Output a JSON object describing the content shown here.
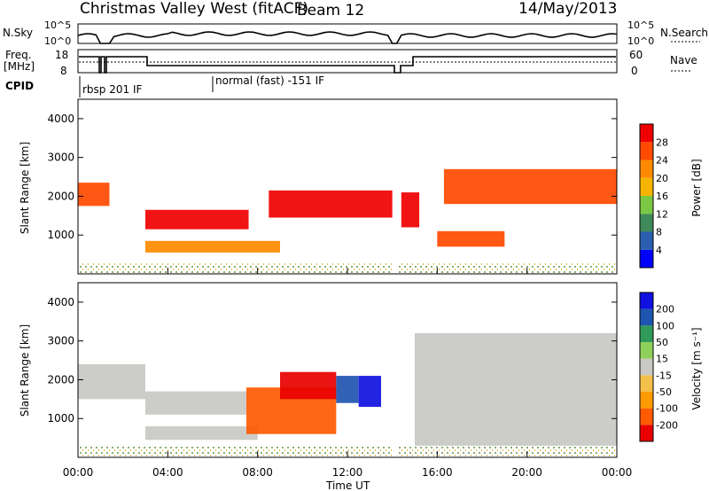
{
  "header": {
    "title": "Christmas Valley West (fitACF)",
    "beam": "Beam 12",
    "date": "14/May/2013"
  },
  "top_panel": {
    "left_label": "N.Sky",
    "right_label": "N.Search",
    "left_ticks": [
      "10^5",
      "10^0"
    ],
    "right_ticks": [
      "10^5",
      "10^0"
    ]
  },
  "freq_panel": {
    "left_label_1": "Freq.",
    "left_label_2": "[MHz]",
    "right_label": "Nave",
    "left_ticks": [
      "18",
      "8"
    ],
    "right_ticks": [
      "60",
      "0"
    ]
  },
  "cpid": {
    "label": "CPID",
    "segments": [
      "rbsp 201 IF",
      "normal (fast) -151 IF"
    ]
  },
  "xaxis": {
    "ticks": [
      "00:00",
      "04:00",
      "08:00",
      "12:00",
      "16:00",
      "20:00",
      "00:00"
    ],
    "label": "Time UT"
  },
  "chart_data": [
    {
      "type": "heatmap",
      "title": "",
      "xlabel": "Time UT",
      "ylabel": "Slant Range [km]",
      "yticks": [
        1000,
        2000,
        3000,
        4000
      ],
      "colorbar_label": "Power [dB]",
      "colorbar_ticks": [
        4,
        8,
        12,
        16,
        20,
        24,
        28
      ],
      "colors": [
        "#0000ff",
        "#2a5fb0",
        "#3f8a5a",
        "#7ac843",
        "#f5b400",
        "#ff8a00",
        "#ff4a00",
        "#f00000"
      ],
      "regions": [
        {
          "t0": 0.0,
          "t1": 1.4,
          "r0": 1750,
          "r1": 2350,
          "level": 6
        },
        {
          "t0": 3.0,
          "t1": 7.6,
          "r0": 1150,
          "r1": 1650,
          "level": 7
        },
        {
          "t0": 3.0,
          "t1": 9.0,
          "r0": 550,
          "r1": 850,
          "level": 5
        },
        {
          "t0": 8.5,
          "t1": 14.0,
          "r0": 1450,
          "r1": 2150,
          "level": 7
        },
        {
          "t0": 14.4,
          "t1": 15.2,
          "r0": 1200,
          "r1": 2100,
          "level": 7
        },
        {
          "t0": 16.0,
          "t1": 19.0,
          "r0": 700,
          "r1": 1100,
          "level": 6
        },
        {
          "t0": 16.3,
          "t1": 24.0,
          "r0": 1800,
          "r1": 2700,
          "level": 6
        }
      ]
    },
    {
      "type": "heatmap",
      "title": "",
      "xlabel": "Time UT",
      "ylabel": "Slant Range [km]",
      "yticks": [
        1000,
        2000,
        3000,
        4000
      ],
      "colorbar_label": "Velocity [m s^-1]",
      "colorbar_ticks": [
        -200,
        -100,
        -50,
        -15,
        15,
        50,
        100,
        200
      ],
      "colors": [
        "#e80000",
        "#ff5a00",
        "#ff9a00",
        "#f3c04a",
        "#c8c8c4",
        "#8fd05a",
        "#2f9a5a",
        "#1f55b0",
        "#1010e0"
      ],
      "regions": [
        {
          "t0": 0.0,
          "t1": 3.0,
          "r0": 1500,
          "r1": 2400,
          "level": 4
        },
        {
          "t0": 3.0,
          "t1": 7.5,
          "r0": 1100,
          "r1": 1700,
          "level": 4
        },
        {
          "t0": 3.0,
          "t1": 8.0,
          "r0": 450,
          "r1": 800,
          "level": 4
        },
        {
          "t0": 7.5,
          "t1": 11.5,
          "r0": 600,
          "r1": 1800,
          "level": 1
        },
        {
          "t0": 9.0,
          "t1": 11.5,
          "r0": 1500,
          "r1": 2200,
          "level": 0
        },
        {
          "t0": 11.5,
          "t1": 12.5,
          "r0": 1400,
          "r1": 2100,
          "level": 7
        },
        {
          "t0": 12.5,
          "t1": 13.5,
          "r0": 1300,
          "r1": 2100,
          "level": 8
        },
        {
          "t0": 15.0,
          "t1": 24.0,
          "r0": 300,
          "r1": 3200,
          "level": 4
        }
      ]
    }
  ]
}
